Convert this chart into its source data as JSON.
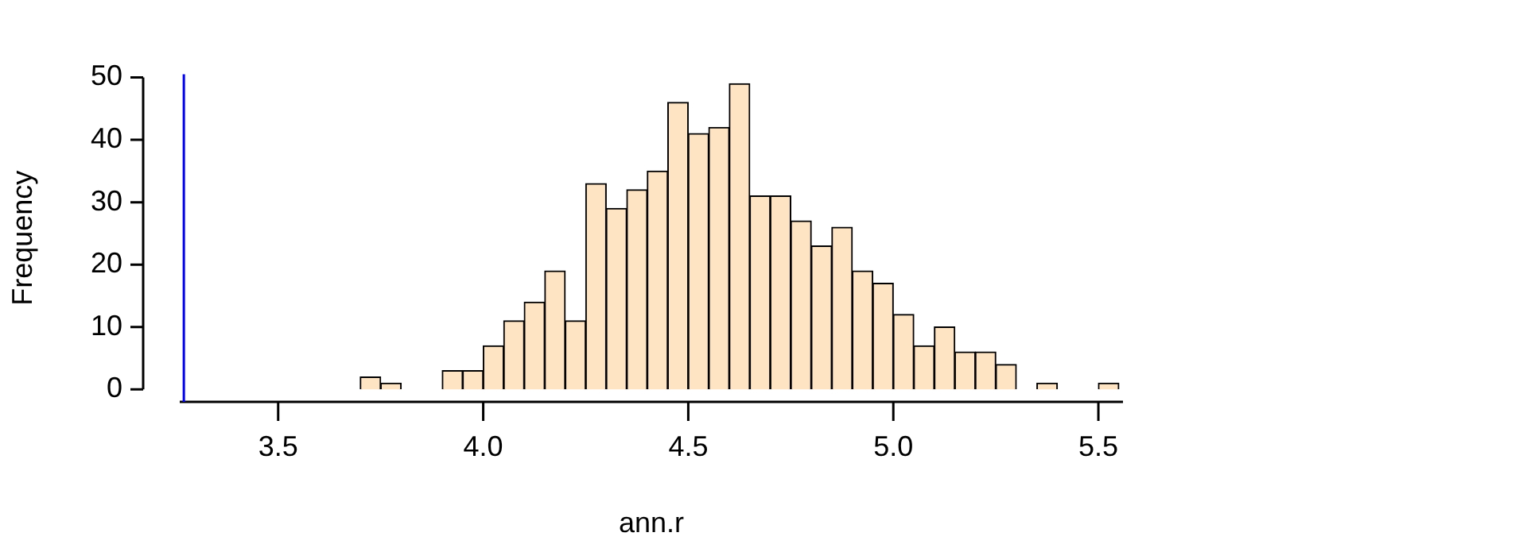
{
  "chart_data": {
    "type": "histogram",
    "xlabel": "ann.r",
    "ylabel": "Frequency",
    "bins": [
      3.7,
      3.75,
      3.8,
      3.85,
      3.9,
      3.95,
      4.0,
      4.05,
      4.1,
      4.15,
      4.2,
      4.25,
      4.3,
      4.35,
      4.4,
      4.45,
      4.5,
      4.55,
      4.6,
      4.65,
      4.7,
      4.75,
      4.8,
      4.85,
      4.9,
      4.95,
      5.0,
      5.05,
      5.1,
      5.15,
      5.2,
      5.25,
      5.3,
      5.35,
      5.4,
      5.45,
      5.5,
      5.55
    ],
    "values": [
      2,
      1,
      0,
      0,
      3,
      3,
      7,
      11,
      14,
      19,
      11,
      33,
      29,
      32,
      35,
      46,
      41,
      42,
      49,
      31,
      31,
      27,
      23,
      26,
      19,
      17,
      12,
      7,
      10,
      6,
      6,
      4,
      0,
      1,
      0,
      0,
      1
    ],
    "color": "#ffe4c4",
    "xlim": [
      3.26,
      5.56
    ],
    "xticks": [
      3.5,
      {
        "value": 4,
        "label": "4.0"
      },
      4.5,
      {
        "value": 5,
        "label": "5.0"
      },
      5.5
    ],
    "ylim": [
      -2,
      50.5
    ],
    "yticks": [
      0,
      10,
      20,
      30,
      40,
      50
    ],
    "ref_lines": [
      {
        "axis": "x",
        "value": 3.27,
        "color": "#0000ff"
      }
    ],
    "grid": false,
    "legend": false
  }
}
